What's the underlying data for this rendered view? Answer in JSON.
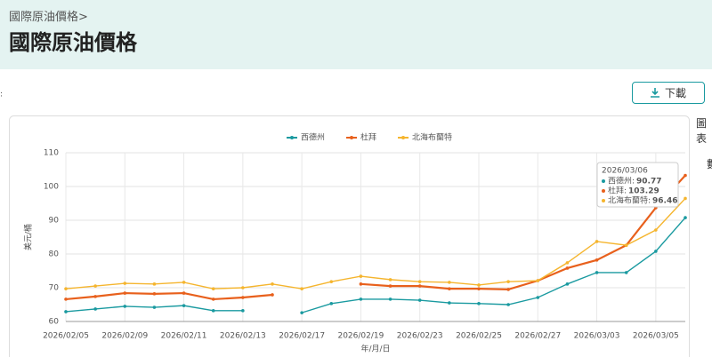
{
  "header": {
    "breadcrumb": "國際原油價格>",
    "title": "國際原油價格"
  },
  "download": "下載",
  "side_tabs": [
    "圖表",
    "數"
  ],
  "chart_data": {
    "type": "line",
    "categories": [
      "2026/02/05",
      null,
      "2026/02/09",
      null,
      "2026/02/11",
      null,
      "2026/02/13",
      null,
      "2026/02/17",
      null,
      "2026/02/19",
      null,
      "2026/02/23",
      null,
      "2026/02/25",
      null,
      "2026/02/27",
      null,
      "2026/03/03",
      null,
      "2026/03/05",
      "2026/03/06"
    ],
    "series": [
      {
        "name": "西德州",
        "color": "#1a9aa0",
        "values": [
          62.9,
          63.7,
          64.5,
          64.2,
          64.7,
          63.2,
          63.2,
          null,
          62.6,
          65.3,
          66.6,
          66.6,
          66.3,
          65.5,
          65.3,
          65.0,
          67.1,
          71.1,
          74.5,
          74.5,
          80.8,
          90.77
        ],
        "value_labels": {
          "21": "90.77"
        }
      },
      {
        "name": "杜拜",
        "color": "#e8601c",
        "values": [
          66.6,
          67.4,
          68.4,
          68.2,
          68.4,
          66.6,
          67.1,
          67.9,
          null,
          null,
          71.1,
          70.5,
          70.5,
          69.7,
          69.7,
          69.5,
          72.1,
          75.8,
          78.2,
          82.6,
          93.7,
          103.29
        ],
        "value_labels": {
          "21": "103.29"
        }
      },
      {
        "name": "北海布蘭特",
        "color": "#f5b52e",
        "values": [
          69.7,
          70.5,
          71.3,
          71.1,
          71.6,
          69.7,
          70.0,
          71.1,
          69.7,
          71.8,
          73.4,
          72.4,
          71.8,
          71.6,
          70.8,
          71.8,
          72.1,
          77.4,
          83.7,
          82.6,
          87.1,
          96.46
        ],
        "value_labels": {
          "21": "96.46"
        }
      }
    ],
    "ylim": [
      60,
      110
    ],
    "yticks": [
      60,
      70,
      80,
      90,
      100,
      110
    ],
    "grid": true,
    "ylabel": "美元/桶",
    "xlabel": "年/月/日",
    "tooltip_index": 21
  }
}
